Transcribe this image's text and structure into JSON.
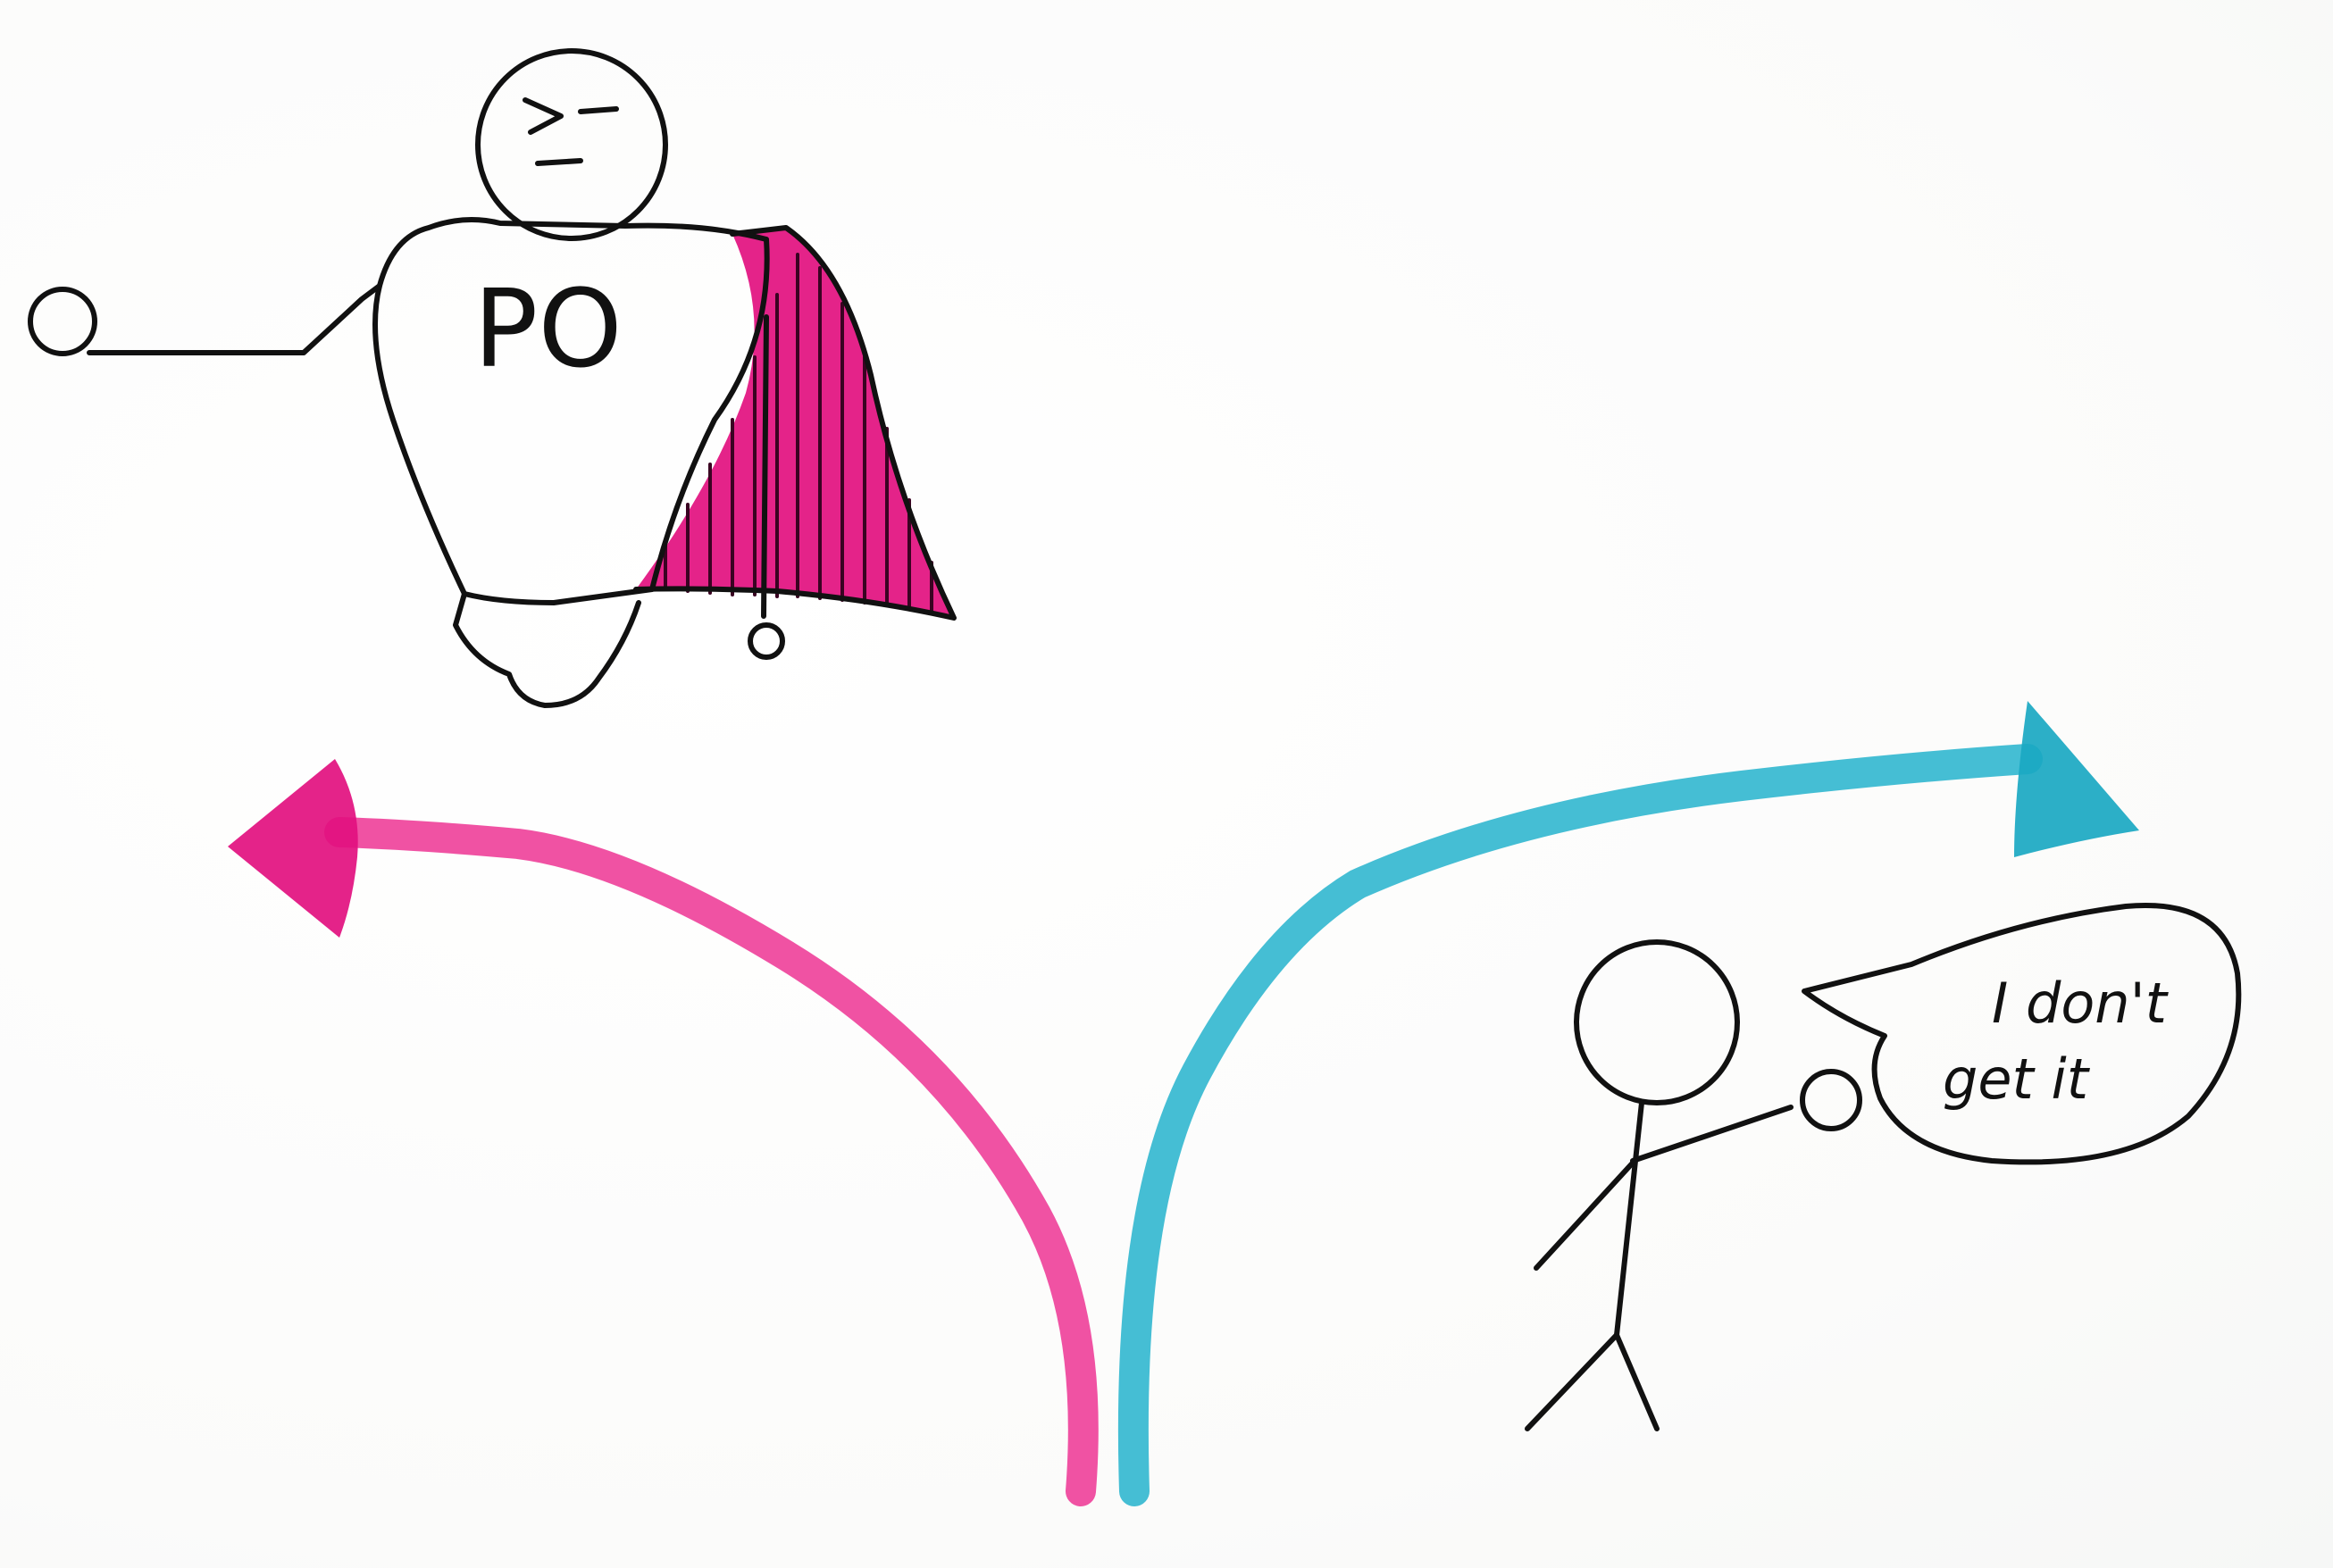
{
  "po_label": "PO",
  "speech": {
    "line1": "I don't",
    "line2": "get it"
  },
  "colors": {
    "cape": "#e2107f",
    "left_arrow": "#ee3a96",
    "right_arrow": "#31b7cf",
    "ink": "#111111",
    "paper": "#fdfdfc"
  },
  "icons": {
    "left_arrow": "curved-arrow-up-left",
    "right_arrow": "curved-arrow-up-right",
    "speech_bubble": "speech-bubble"
  }
}
